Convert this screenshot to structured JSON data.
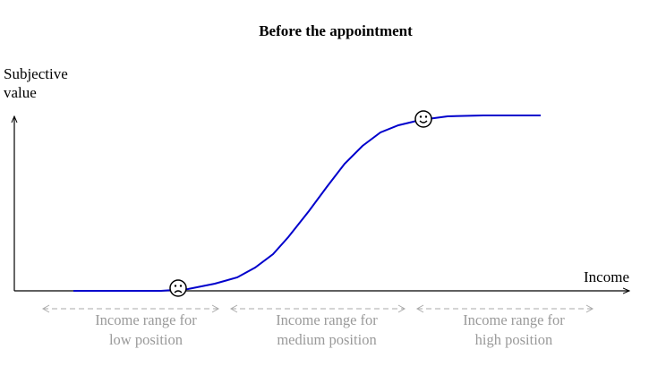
{
  "title": "Before the appointment",
  "axes": {
    "y_label": [
      "Subjective",
      "value"
    ],
    "x_label": "Income"
  },
  "ranges": [
    {
      "lines": [
        "Income range for",
        "low position"
      ]
    },
    {
      "lines": [
        "Income range for",
        "medium position"
      ]
    },
    {
      "lines": [
        "Income range for",
        "high position"
      ]
    }
  ]
}
